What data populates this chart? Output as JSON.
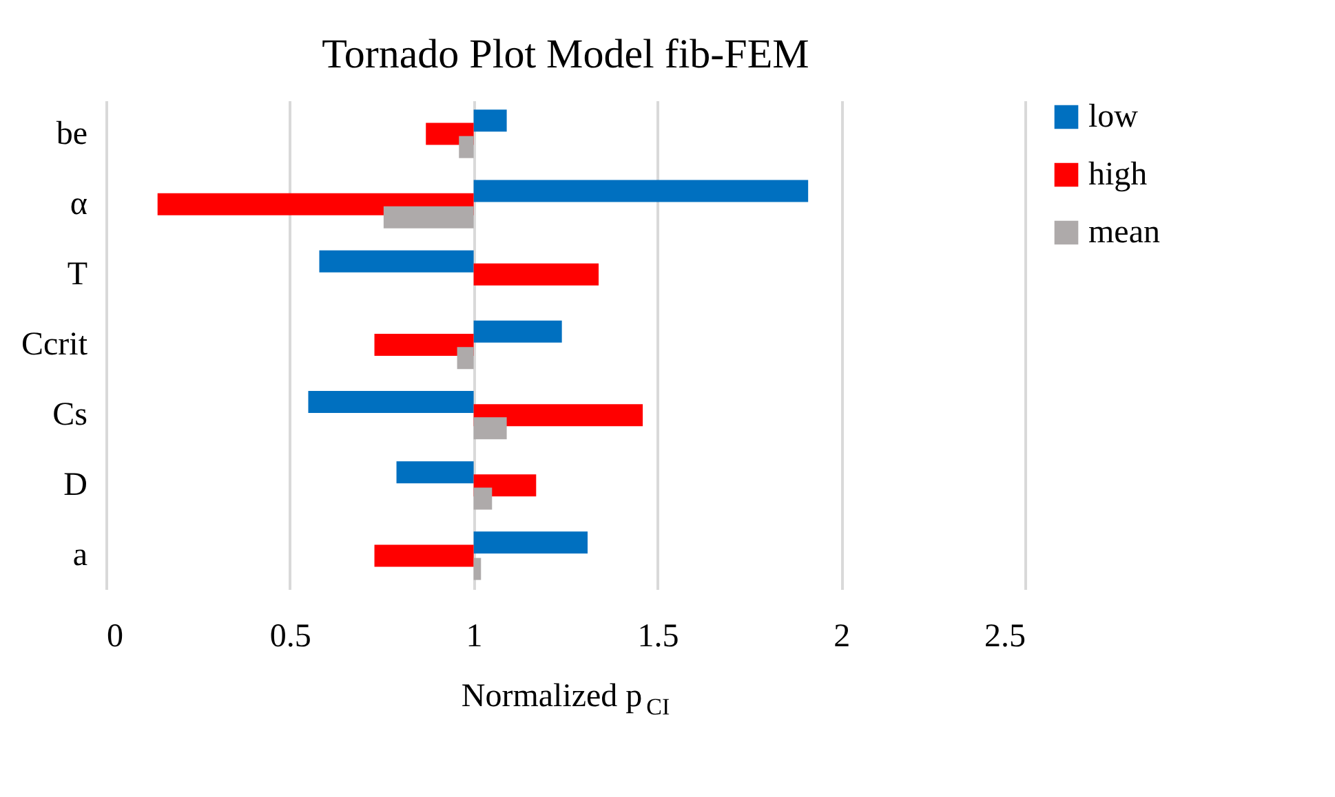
{
  "chart_data": {
    "type": "bar",
    "orientation": "horizontal",
    "title": "Tornado Plot Model fib-FEM",
    "xlabel": "Normalized p$_{CI}$",
    "categories": [
      "be",
      "α",
      "T",
      "Ccrit",
      "Cs",
      "D",
      "a"
    ],
    "series": [
      {
        "name": "low",
        "color": "#0070c0",
        "base": [
          1,
          1,
          1,
          1,
          1,
          1,
          1
        ],
        "values": [
          0.09,
          0.91,
          -0.42,
          0.24,
          -0.45,
          -0.21,
          0.31
        ]
      },
      {
        "name": "high",
        "color": "#ff0000",
        "base": [
          1,
          1,
          1,
          1,
          1,
          1,
          1
        ],
        "values": [
          -0.13,
          -0.86,
          0.34,
          -0.27,
          0.46,
          0.17,
          -0.27
        ]
      },
      {
        "name": "mean",
        "color": "#aeaaaa",
        "base": [
          1,
          1,
          null,
          1,
          1,
          1,
          1
        ],
        "values": [
          -0.04,
          -0.245,
          null,
          -0.045,
          0.09,
          0.05,
          0.02
        ]
      }
    ],
    "xlim": [
      0,
      2.5
    ],
    "xticks": [
      0,
      0.5,
      1,
      1.5,
      2,
      2.5
    ],
    "grid": "x",
    "legend": "right"
  }
}
